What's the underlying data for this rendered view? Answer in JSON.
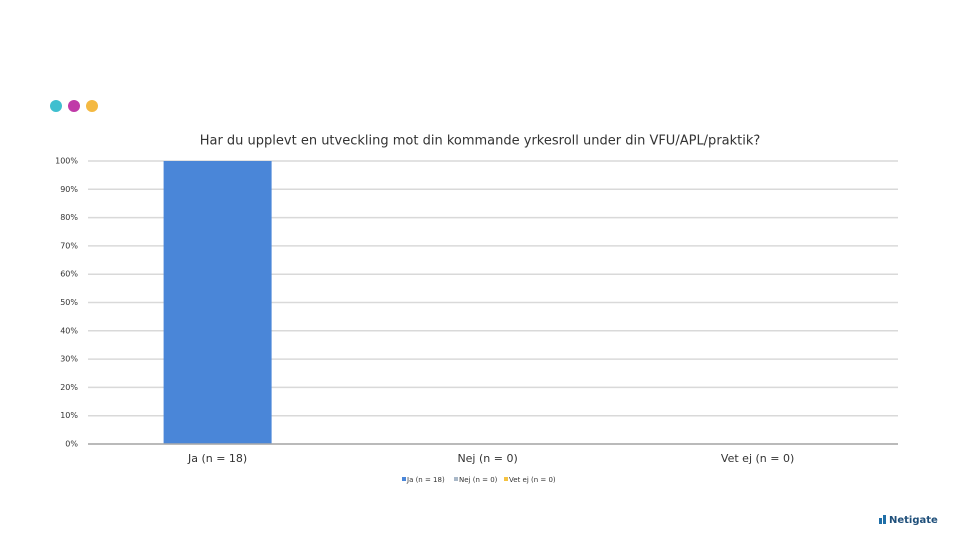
{
  "logo": "Netigate",
  "chart_data": {
    "type": "bar",
    "title": "Har du upplevt en utveckling mot din kommande yrkesroll under din VFU/APL/praktik?",
    "categories": [
      "Ja (n = 18)",
      "Nej (n = 0)",
      "Vet ej (n = 0)"
    ],
    "values": [
      100,
      0,
      0
    ],
    "colors": [
      "#4a86d8",
      "#a9b8c8",
      "#f5c342"
    ],
    "ylim": [
      0,
      100
    ],
    "yticks": [
      {
        "value": 0,
        "label": "0%"
      },
      {
        "value": 10,
        "label": "10%"
      },
      {
        "value": 20,
        "label": "20%"
      },
      {
        "value": 30,
        "label": "30%"
      },
      {
        "value": 40,
        "label": "40%"
      },
      {
        "value": 50,
        "label": "50%"
      },
      {
        "value": 60,
        "label": "60%"
      },
      {
        "value": 70,
        "label": "70%"
      },
      {
        "value": 80,
        "label": "80%"
      },
      {
        "value": 90,
        "label": "90%"
      },
      {
        "value": 100,
        "label": "100%"
      }
    ],
    "grid": true,
    "legend": "bottom"
  }
}
